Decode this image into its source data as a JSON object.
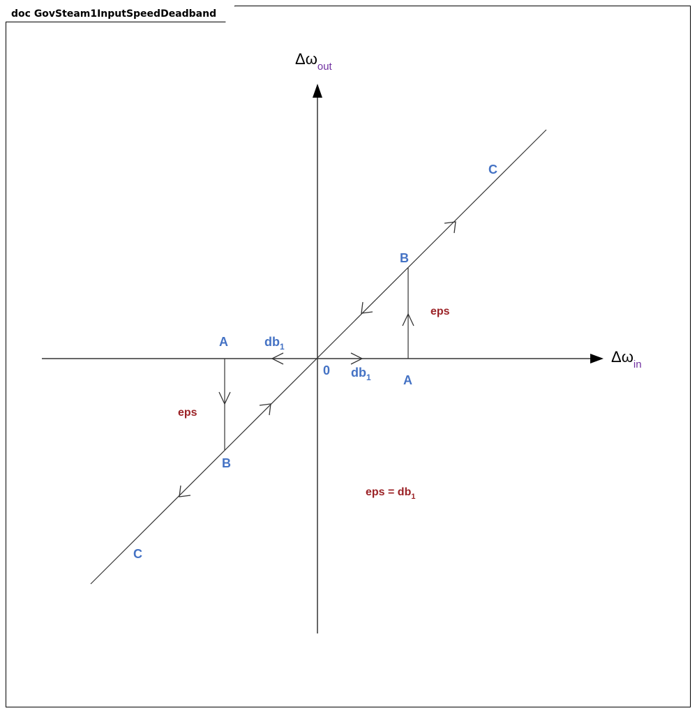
{
  "frame": {
    "title": "doc GovSteam1InputSpeedDeadband"
  },
  "axes": {
    "y_label_main": "Δω",
    "y_label_sub": "out",
    "x_label_main": "Δω",
    "x_label_sub": "in"
  },
  "labels": {
    "origin": "0",
    "point_a": "A",
    "point_b": "B",
    "point_c": "C",
    "db_main": "db",
    "db_sub": "1",
    "eps": "eps",
    "eps_equation_main": "eps = db",
    "eps_equation_sub": "1"
  },
  "colors": {
    "point_label": "#4472c4",
    "eps_label": "#9b2226",
    "axis_subscript": "#7030a0",
    "lines": "#333333"
  }
}
